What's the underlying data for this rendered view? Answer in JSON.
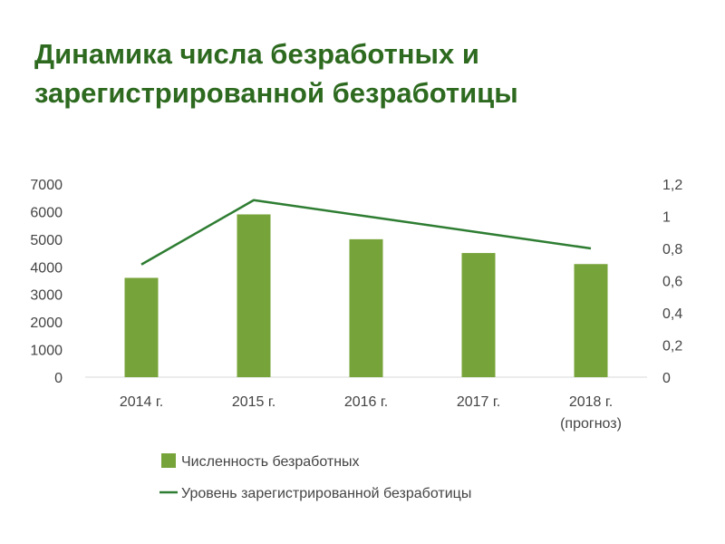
{
  "header": {
    "title_line1": "Динамика числа безработных и",
    "title_line2": "зарегистрированной безработицы"
  },
  "colors": {
    "title": "#2d6a1f",
    "bar": "#77a43a",
    "line": "#2e7d32",
    "grid": "#d9d9d9",
    "text": "#444444"
  },
  "chart_data": {
    "type": "bar",
    "categories": [
      [
        "2014 г."
      ],
      [
        "2015 г."
      ],
      [
        "2016 г."
      ],
      [
        "2017 г."
      ],
      [
        "2018 г.",
        "(прогноз)"
      ]
    ],
    "series": [
      {
        "name": "Численность безработных",
        "type": "bar",
        "axis": "left",
        "values": [
          3600,
          5900,
          5000,
          4500,
          4100
        ]
      },
      {
        "name": "Уровень зарегистрированной безработицы",
        "type": "line",
        "axis": "right",
        "values": [
          0.7,
          1.1,
          1.0,
          0.9,
          0.8
        ]
      }
    ],
    "y_left": {
      "range": [
        0,
        7000
      ],
      "ticks": [
        "0",
        "1000",
        "2000",
        "3000",
        "4000",
        "5000",
        "6000",
        "7000"
      ]
    },
    "y_right": {
      "range": [
        0,
        1.2
      ],
      "ticks": [
        "0",
        "0,2",
        "0,4",
        "0,6",
        "0,8",
        "1",
        "1,2"
      ]
    },
    "grid": false,
    "legend_position": "bottom"
  }
}
